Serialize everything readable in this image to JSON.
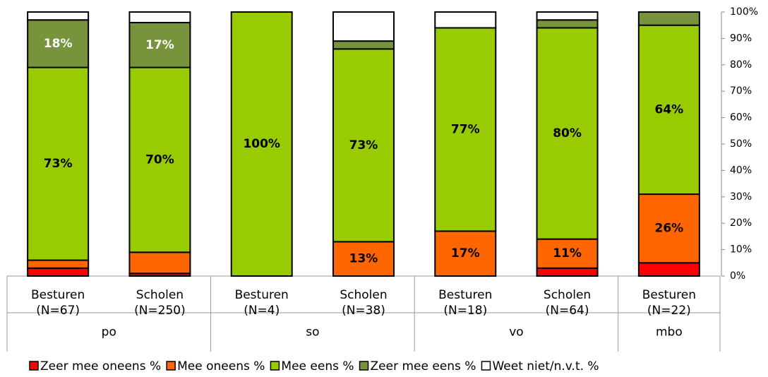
{
  "chart_data": {
    "type": "stacked_bar",
    "categories": [
      "Besturen\n(N=67)",
      "Scholen\n(N=250)",
      "Besturen\n(N=4)",
      "Scholen\n(N=38)",
      "Besturen\n(N=18)",
      "Scholen\n(N=64)",
      "Besturen\n(N=22)"
    ],
    "groups": [
      "po",
      "po",
      "so",
      "so",
      "vo",
      "vo",
      "mbo"
    ],
    "series": [
      {
        "name": "Zeer mee oneens %",
        "color": "#ff0000",
        "label_color": "#000000",
        "values": [
          3,
          1,
          0,
          0,
          0,
          3,
          5
        ],
        "value_labels": [
          null,
          null,
          null,
          null,
          null,
          null,
          null
        ]
      },
      {
        "name": "Mee oneens %",
        "color": "#ff6600",
        "label_color": "#000000",
        "values": [
          3,
          8,
          0,
          13,
          17,
          11,
          26
        ],
        "value_labels": [
          null,
          null,
          null,
          "13%",
          "17%",
          "11%",
          "26%"
        ]
      },
      {
        "name": "Mee eens %",
        "color": "#99cc00",
        "label_color": "#000000",
        "values": [
          73,
          70,
          100,
          73,
          77,
          80,
          64
        ],
        "value_labels": [
          "73%",
          "70%",
          "100%",
          "73%",
          "77%",
          "80%",
          "64%"
        ]
      },
      {
        "name": "Zeer mee eens %",
        "color": "#77933c",
        "label_color": "#ffffff",
        "values": [
          18,
          17,
          0,
          3,
          0,
          3,
          5
        ],
        "value_labels": [
          "18%",
          "17%",
          null,
          null,
          null,
          null,
          null
        ]
      },
      {
        "name": "Weet niet/n.v.t. %",
        "color": "#ffffff",
        "label_color": "#000000",
        "values": [
          3,
          4,
          0,
          11,
          6,
          3,
          0
        ],
        "value_labels": [
          null,
          null,
          null,
          null,
          null,
          null,
          null
        ]
      }
    ],
    "ylim": [
      0,
      100
    ],
    "yticks": [
      {
        "value": 0,
        "label": "0%"
      },
      {
        "value": 10,
        "label": "10%"
      },
      {
        "value": 20,
        "label": "20%"
      },
      {
        "value": 30,
        "label": "30%"
      },
      {
        "value": 40,
        "label": "40%"
      },
      {
        "value": 50,
        "label": "50%"
      },
      {
        "value": 60,
        "label": "60%"
      },
      {
        "value": 70,
        "label": "70%"
      },
      {
        "value": 80,
        "label": "80%"
      },
      {
        "value": 90,
        "label": "90%"
      },
      {
        "value": 100,
        "label": "100%"
      }
    ],
    "y_axis_side": "right",
    "legend": "bottom"
  }
}
